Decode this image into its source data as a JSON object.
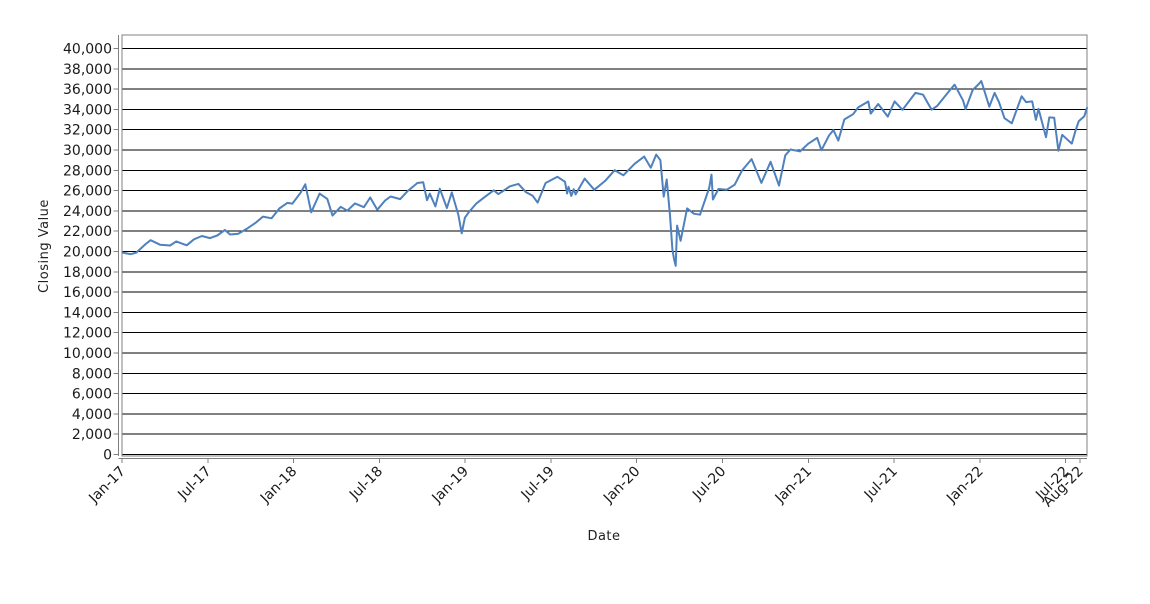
{
  "chart_data": {
    "type": "line",
    "title": "",
    "xlabel": "Date",
    "ylabel": "Closing Value",
    "legend": "none",
    "grid": "horizontal",
    "grid_color": "#000000",
    "axis_color": "#808080",
    "line_color": "#4f81bd",
    "ylim": [
      0,
      40000
    ],
    "y_tick_step": 2000,
    "x_domain": [
      "2017-01-01",
      "2022-08-16"
    ],
    "x_ticks": [
      {
        "label": "Jan-17",
        "date": "2017-01"
      },
      {
        "label": "Jul-17",
        "date": "2017-07"
      },
      {
        "label": "Jan-18",
        "date": "2018-01"
      },
      {
        "label": "Jul-18",
        "date": "2018-07"
      },
      {
        "label": "Jan-19",
        "date": "2019-01"
      },
      {
        "label": "Jul-19",
        "date": "2019-07"
      },
      {
        "label": "Jan-20",
        "date": "2020-01"
      },
      {
        "label": "Jul-20",
        "date": "2020-07"
      },
      {
        "label": "Jan-21",
        "date": "2021-01"
      },
      {
        "label": "Jul-21",
        "date": "2021-07"
      },
      {
        "label": "Jan-22",
        "date": "2022-01"
      },
      {
        "label": "Jul-22",
        "date": "2022-07"
      },
      {
        "label": "Aug-22",
        "date": "2022-08"
      }
    ],
    "series": [
      {
        "name": "Closing Value",
        "points": [
          [
            "2017-01-03",
            19882
          ],
          [
            "2017-01-19",
            19732
          ],
          [
            "2017-02-01",
            19891
          ],
          [
            "2017-02-21",
            20743
          ],
          [
            "2017-03-01",
            21115
          ],
          [
            "2017-03-21",
            20668
          ],
          [
            "2017-04-12",
            20591
          ],
          [
            "2017-04-25",
            20996
          ],
          [
            "2017-05-17",
            20607
          ],
          [
            "2017-06-02",
            21206
          ],
          [
            "2017-06-19",
            21528
          ],
          [
            "2017-07-06",
            21320
          ],
          [
            "2017-07-21",
            21580
          ],
          [
            "2017-08-07",
            22118
          ],
          [
            "2017-08-18",
            21675
          ],
          [
            "2017-09-05",
            21753
          ],
          [
            "2017-09-25",
            22296
          ],
          [
            "2017-10-13",
            22872
          ],
          [
            "2017-10-27",
            23434
          ],
          [
            "2017-11-15",
            23271
          ],
          [
            "2017-12-01",
            24232
          ],
          [
            "2017-12-18",
            24792
          ],
          [
            "2017-12-29",
            24719
          ],
          [
            "2018-01-16",
            25793
          ],
          [
            "2018-01-26",
            26617
          ],
          [
            "2018-02-08",
            23860
          ],
          [
            "2018-02-26",
            25709
          ],
          [
            "2018-03-12",
            25179
          ],
          [
            "2018-03-23",
            23533
          ],
          [
            "2018-04-10",
            24408
          ],
          [
            "2018-04-24",
            24024
          ],
          [
            "2018-05-10",
            24740
          ],
          [
            "2018-05-29",
            24362
          ],
          [
            "2018-06-12",
            25320
          ],
          [
            "2018-06-27",
            24118
          ],
          [
            "2018-07-13",
            25019
          ],
          [
            "2018-07-25",
            25414
          ],
          [
            "2018-08-15",
            25162
          ],
          [
            "2018-08-31",
            25965
          ],
          [
            "2018-09-21",
            26744
          ],
          [
            "2018-10-03",
            26828
          ],
          [
            "2018-10-11",
            25053
          ],
          [
            "2018-10-17",
            25707
          ],
          [
            "2018-10-29",
            24443
          ],
          [
            "2018-11-08",
            26191
          ],
          [
            "2018-11-23",
            24286
          ],
          [
            "2018-12-03",
            25826
          ],
          [
            "2018-12-17",
            23593
          ],
          [
            "2018-12-24",
            21792
          ],
          [
            "2018-12-31",
            23327
          ],
          [
            "2019-01-09",
            23879
          ],
          [
            "2019-01-25",
            24737
          ],
          [
            "2019-02-14",
            25439
          ],
          [
            "2019-03-01",
            26026
          ],
          [
            "2019-03-11",
            25651
          ],
          [
            "2019-03-21",
            25963
          ],
          [
            "2019-04-05",
            26425
          ],
          [
            "2019-04-23",
            26656
          ],
          [
            "2019-05-09",
            25828
          ],
          [
            "2019-05-23",
            25490
          ],
          [
            "2019-06-03",
            24820
          ],
          [
            "2019-06-20",
            26753
          ],
          [
            "2019-07-15",
            27359
          ],
          [
            "2019-07-31",
            26864
          ],
          [
            "2019-08-05",
            25718
          ],
          [
            "2019-08-08",
            26378
          ],
          [
            "2019-08-14",
            25479
          ],
          [
            "2019-08-19",
            26136
          ],
          [
            "2019-08-23",
            25629
          ],
          [
            "2019-09-12",
            27182
          ],
          [
            "2019-10-02",
            26078
          ],
          [
            "2019-10-25",
            26958
          ],
          [
            "2019-11-15",
            28005
          ],
          [
            "2019-12-03",
            27503
          ],
          [
            "2019-12-27",
            28645
          ],
          [
            "2020-01-17",
            29348
          ],
          [
            "2020-01-31",
            28256
          ],
          [
            "2020-02-12",
            29551
          ],
          [
            "2020-02-21",
            28992
          ],
          [
            "2020-02-28",
            25409
          ],
          [
            "2020-03-04",
            27091
          ],
          [
            "2020-03-11",
            23553
          ],
          [
            "2020-03-16",
            20188
          ],
          [
            "2020-03-20",
            19174
          ],
          [
            "2020-03-23",
            18592
          ],
          [
            "2020-03-26",
            22552
          ],
          [
            "2020-04-03",
            21053
          ],
          [
            "2020-04-17",
            24242
          ],
          [
            "2020-05-01",
            23724
          ],
          [
            "2020-05-14",
            23625
          ],
          [
            "2020-06-03",
            26270
          ],
          [
            "2020-06-08",
            27572
          ],
          [
            "2020-06-11",
            25128
          ],
          [
            "2020-06-23",
            26156
          ],
          [
            "2020-07-10",
            26075
          ],
          [
            "2020-07-27",
            26584
          ],
          [
            "2020-08-12",
            27977
          ],
          [
            "2020-09-02",
            29101
          ],
          [
            "2020-09-23",
            26763
          ],
          [
            "2020-10-12",
            28838
          ],
          [
            "2020-10-30",
            26502
          ],
          [
            "2020-11-13",
            29480
          ],
          [
            "2020-11-24",
            30046
          ],
          [
            "2020-12-14",
            29861
          ],
          [
            "2020-12-31",
            30606
          ],
          [
            "2021-01-20",
            31188
          ],
          [
            "2021-01-29",
            29983
          ],
          [
            "2021-02-15",
            31458
          ],
          [
            "2021-02-24",
            31962
          ],
          [
            "2021-03-04",
            30924
          ],
          [
            "2021-03-17",
            33015
          ],
          [
            "2021-04-05",
            33527
          ],
          [
            "2021-04-16",
            34201
          ],
          [
            "2021-05-07",
            34778
          ],
          [
            "2021-05-12",
            33588
          ],
          [
            "2021-05-28",
            34529
          ],
          [
            "2021-06-18",
            33290
          ],
          [
            "2021-07-02",
            34786
          ],
          [
            "2021-07-19",
            33962
          ],
          [
            "2021-08-16",
            35625
          ],
          [
            "2021-09-02",
            35444
          ],
          [
            "2021-09-20",
            33970
          ],
          [
            "2021-10-01",
            34326
          ],
          [
            "2021-10-26",
            35757
          ],
          [
            "2021-11-08",
            36432
          ],
          [
            "2021-11-26",
            34899
          ],
          [
            "2021-12-01",
            34022
          ],
          [
            "2021-12-16",
            35898
          ],
          [
            "2021-12-29",
            36488
          ],
          [
            "2022-01-04",
            36800
          ],
          [
            "2022-01-21",
            34265
          ],
          [
            "2022-02-02",
            35629
          ],
          [
            "2022-02-11",
            34738
          ],
          [
            "2022-02-23",
            33131
          ],
          [
            "2022-03-08",
            32632
          ],
          [
            "2022-03-29",
            35294
          ],
          [
            "2022-04-08",
            34721
          ],
          [
            "2022-04-21",
            34793
          ],
          [
            "2022-04-29",
            32977
          ],
          [
            "2022-05-04",
            34061
          ],
          [
            "2022-05-20",
            31261
          ],
          [
            "2022-05-27",
            33213
          ],
          [
            "2022-06-07",
            33180
          ],
          [
            "2022-06-16",
            29927
          ],
          [
            "2022-06-24",
            31500
          ],
          [
            "2022-07-14",
            30630
          ],
          [
            "2022-07-22",
            31899
          ],
          [
            "2022-07-29",
            32845
          ],
          [
            "2022-08-10",
            33309
          ],
          [
            "2022-08-16",
            34152
          ]
        ]
      }
    ]
  }
}
